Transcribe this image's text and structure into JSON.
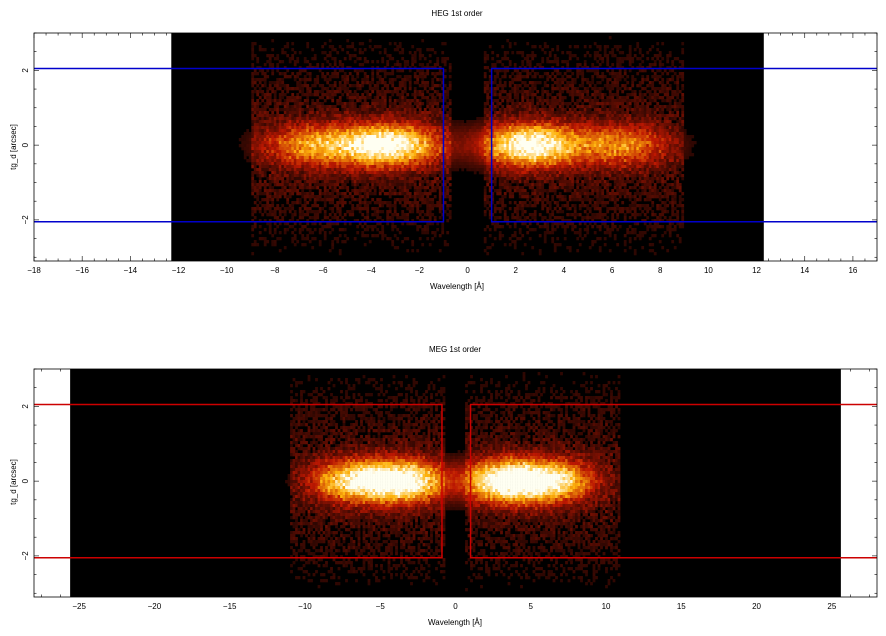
{
  "chart_data": [
    {
      "type": "heatmap",
      "title": "HEG 1st order",
      "xlabel": "Wavelength [Å]",
      "ylabel": "tg_d [arcsec]",
      "xlim": [
        -18,
        17
      ],
      "ylim": [
        -3.1,
        3.0
      ],
      "x_ticks": [
        -18,
        -16,
        -14,
        -12,
        -10,
        -8,
        -6,
        -4,
        -2,
        0,
        2,
        4,
        6,
        8,
        10,
        12,
        14,
        16
      ],
      "y_ticks": [
        -2,
        0,
        2
      ],
      "data_extent_x": [
        -12.3,
        12.3
      ],
      "colormap": "black-red-yellow-white",
      "box_color": "#0000cc",
      "extraction_regions": [
        {
          "x": [
            -20,
            -1.0
          ],
          "y": [
            -2.05,
            2.05
          ]
        },
        {
          "x": [
            1.0,
            20
          ],
          "y": [
            -2.05,
            2.05
          ]
        }
      ],
      "emission_peaks": [
        {
          "x": -3.3,
          "y": 0,
          "intensity": 1.0
        },
        {
          "x": -6.4,
          "y": 0,
          "intensity": 0.55
        },
        {
          "x": 2.6,
          "y": 0,
          "intensity": 1.0
        },
        {
          "x": 6.4,
          "y": 0,
          "intensity": 0.5
        }
      ]
    },
    {
      "type": "heatmap",
      "title": "MEG 1st order",
      "xlabel": "Wavelength [Å]",
      "ylabel": "tg_d [arcsec]",
      "xlim": [
        -28,
        28
      ],
      "ylim": [
        -3.1,
        3.0
      ],
      "x_ticks": [
        -25,
        -20,
        -15,
        -10,
        -5,
        0,
        5,
        10,
        15,
        20,
        25
      ],
      "y_ticks": [
        -2,
        0,
        2
      ],
      "data_extent_x": [
        -25.6,
        25.6
      ],
      "colormap": "black-red-yellow-white",
      "box_color": "#cc0000",
      "extraction_regions": [
        {
          "x": [
            -30,
            -0.9
          ],
          "y": [
            -2.05,
            2.05
          ]
        },
        {
          "x": [
            1.0,
            30
          ],
          "y": [
            -2.05,
            2.05
          ]
        }
      ],
      "emission_peaks": [
        {
          "x": -3.5,
          "y": 0,
          "intensity": 1.0
        },
        {
          "x": -6.8,
          "y": 0,
          "intensity": 0.75
        },
        {
          "x": 3.3,
          "y": 0,
          "intensity": 1.0
        },
        {
          "x": 6.4,
          "y": 0,
          "intensity": 0.8
        }
      ]
    }
  ]
}
